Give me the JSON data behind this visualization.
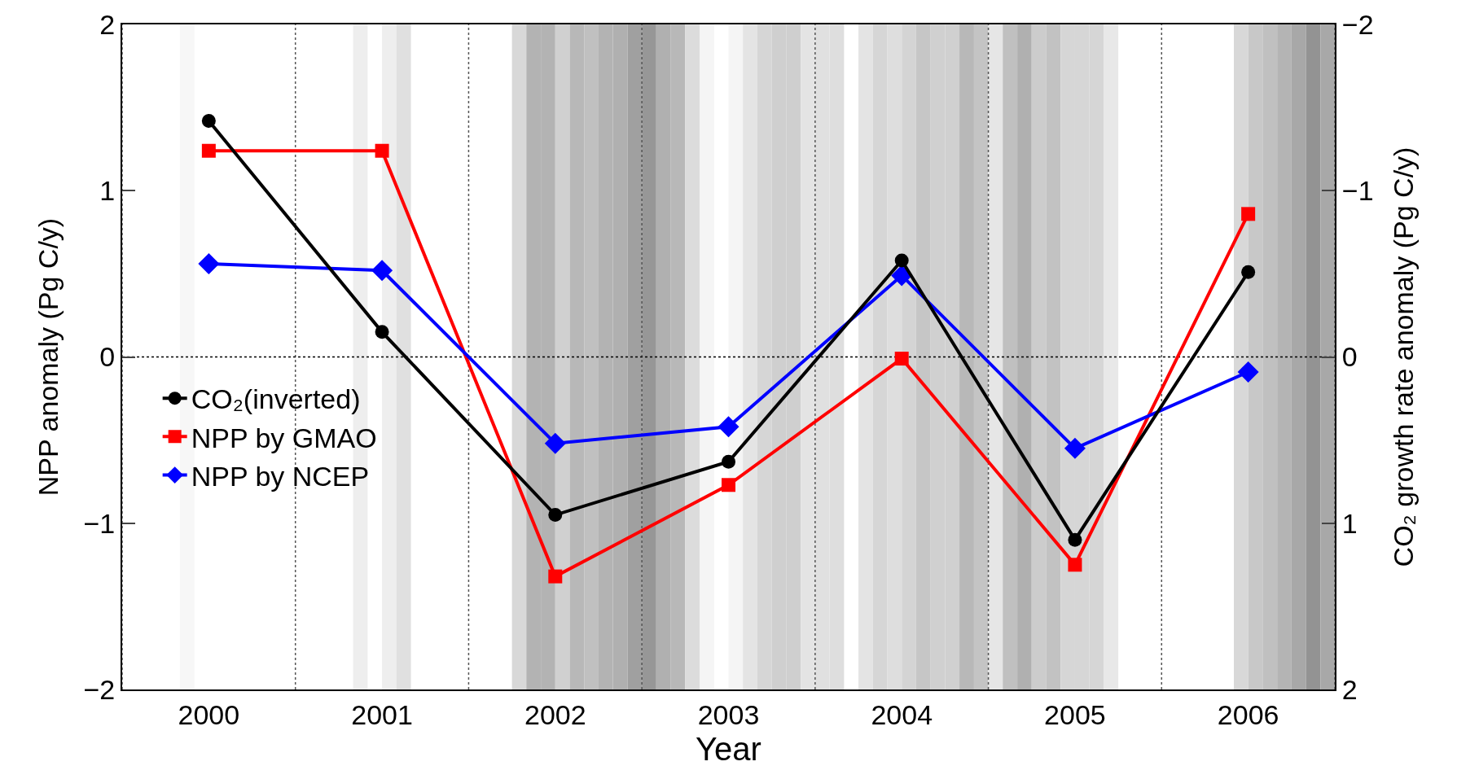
{
  "chart_data": {
    "type": "line",
    "xlabel": "Year",
    "ylabel": "NPP anomaly (Pg C/y)",
    "y2label": "CO₂ growth rate anomaly (Pg C/y)",
    "x": [
      2000,
      2001,
      2002,
      2003,
      2004,
      2005,
      2006
    ],
    "series": [
      {
        "name": "CO₂(inverted)",
        "color": "#000000",
        "marker": "circle",
        "axis": "y2",
        "values": [
          -1.42,
          -0.15,
          0.95,
          0.63,
          -0.58,
          1.1,
          -0.51
        ]
      },
      {
        "name": "NPP by GMAO",
        "color": "#ff0000",
        "marker": "square",
        "values": [
          1.24,
          1.24,
          -1.32,
          -0.77,
          -0.01,
          -1.25,
          0.86
        ]
      },
      {
        "name": "NPP by NCEP",
        "color": "#0000ff",
        "marker": "diamond",
        "values": [
          0.56,
          0.52,
          -0.52,
          -0.42,
          0.49,
          -0.55,
          -0.09
        ]
      }
    ],
    "xlim": [
      1999.5,
      2006.5
    ],
    "xticks": [
      {
        "value": 1999.5,
        "label": null
      },
      2000,
      {
        "value": 2000.5,
        "label": null
      },
      2001,
      {
        "value": 2001.5,
        "label": null
      },
      2002,
      {
        "value": 2002.5,
        "label": null
      },
      2003,
      {
        "value": 2003.5,
        "label": null
      },
      2004,
      {
        "value": 2004.5,
        "label": null
      },
      2005,
      {
        "value": 2005.5,
        "label": null
      },
      2006,
      {
        "value": 2006.5,
        "label": null
      }
    ],
    "ylim": [
      -2,
      2
    ],
    "yticks": [
      {
        "value": -2,
        "label": "−2"
      },
      {
        "value": -1,
        "label": "−1"
      },
      0,
      1,
      2
    ],
    "y2lim": [
      2,
      -2
    ],
    "y2ticks": [
      2,
      1,
      0,
      {
        "value": -1,
        "label": "−1"
      },
      {
        "value": -2,
        "label": "−2"
      }
    ],
    "grid": "x",
    "legend": "left",
    "line_style": "solid",
    "ref_lines": [
      {
        "axis": "y",
        "value": 0,
        "line_style": "dotted",
        "color": "#000000"
      }
    ],
    "bands": [
      {
        "axis": "x",
        "from": 1999.833,
        "to": 1999.917,
        "color": "#f7f7f7"
      },
      {
        "axis": "x",
        "from": 2000.833,
        "to": 2000.917,
        "color": "#eeeeee"
      },
      {
        "axis": "x",
        "from": 2001.0,
        "to": 2001.083,
        "color": "#eeeeee"
      },
      {
        "axis": "x",
        "from": 2001.083,
        "to": 2001.167,
        "color": "#e0e0e0"
      },
      {
        "axis": "x",
        "from": 2001.75,
        "to": 2001.833,
        "color": "#d8d8d8"
      },
      {
        "axis": "x",
        "from": 2001.833,
        "to": 2001.917,
        "color": "#b3b3b3"
      },
      {
        "axis": "x",
        "from": 2001.917,
        "to": 2002.0,
        "color": "#b3b3b3"
      },
      {
        "axis": "x",
        "from": 2002.0,
        "to": 2002.083,
        "color": "#d0d0d0"
      },
      {
        "axis": "x",
        "from": 2002.083,
        "to": 2002.167,
        "color": "#b8b8b8"
      },
      {
        "axis": "x",
        "from": 2002.167,
        "to": 2002.25,
        "color": "#c0c0c0"
      },
      {
        "axis": "x",
        "from": 2002.25,
        "to": 2002.333,
        "color": "#b3b3b3"
      },
      {
        "axis": "x",
        "from": 2002.333,
        "to": 2002.417,
        "color": "#b0b0b0"
      },
      {
        "axis": "x",
        "from": 2002.417,
        "to": 2002.5,
        "color": "#a0a0a0"
      },
      {
        "axis": "x",
        "from": 2002.5,
        "to": 2002.583,
        "color": "#979797"
      },
      {
        "axis": "x",
        "from": 2002.583,
        "to": 2002.667,
        "color": "#b0b0b0"
      },
      {
        "axis": "x",
        "from": 2002.667,
        "to": 2002.75,
        "color": "#b8b8b8"
      },
      {
        "axis": "x",
        "from": 2002.75,
        "to": 2002.833,
        "color": "#dcdcdc"
      },
      {
        "axis": "x",
        "from": 2002.833,
        "to": 2002.917,
        "color": "#f5f5f5"
      },
      {
        "axis": "x",
        "from": 2003.0,
        "to": 2003.083,
        "color": "#f5f5f5"
      },
      {
        "axis": "x",
        "from": 2003.083,
        "to": 2003.167,
        "color": "#e4e4e4"
      },
      {
        "axis": "x",
        "from": 2003.167,
        "to": 2003.25,
        "color": "#d6d6d6"
      },
      {
        "axis": "x",
        "from": 2003.25,
        "to": 2003.333,
        "color": "#cfcfcf"
      },
      {
        "axis": "x",
        "from": 2003.333,
        "to": 2003.417,
        "color": "#cfcfcf"
      },
      {
        "axis": "x",
        "from": 2003.417,
        "to": 2003.5,
        "color": "#e4e4e4"
      },
      {
        "axis": "x",
        "from": 2003.5,
        "to": 2003.583,
        "color": "#e0e0e0"
      },
      {
        "axis": "x",
        "from": 2003.583,
        "to": 2003.667,
        "color": "#dedede"
      },
      {
        "axis": "x",
        "from": 2003.75,
        "to": 2003.833,
        "color": "#e4e4e4"
      },
      {
        "axis": "x",
        "from": 2003.833,
        "to": 2003.917,
        "color": "#d6d6d6"
      },
      {
        "axis": "x",
        "from": 2003.917,
        "to": 2004.0,
        "color": "#dedede"
      },
      {
        "axis": "x",
        "from": 2004.0,
        "to": 2004.083,
        "color": "#d4d4d4"
      },
      {
        "axis": "x",
        "from": 2004.083,
        "to": 2004.167,
        "color": "#c6c6c6"
      },
      {
        "axis": "x",
        "from": 2004.167,
        "to": 2004.25,
        "color": "#d0d0d0"
      },
      {
        "axis": "x",
        "from": 2004.25,
        "to": 2004.333,
        "color": "#d0d0d0"
      },
      {
        "axis": "x",
        "from": 2004.333,
        "to": 2004.417,
        "color": "#b8b8b8"
      },
      {
        "axis": "x",
        "from": 2004.417,
        "to": 2004.5,
        "color": "#c4c4c4"
      },
      {
        "axis": "x",
        "from": 2004.5,
        "to": 2004.583,
        "color": "#e6e6e6"
      },
      {
        "axis": "x",
        "from": 2004.583,
        "to": 2004.667,
        "color": "#c0c0c0"
      },
      {
        "axis": "x",
        "from": 2004.667,
        "to": 2004.75,
        "color": "#b0b0b0"
      },
      {
        "axis": "x",
        "from": 2004.75,
        "to": 2004.833,
        "color": "#cccccc"
      },
      {
        "axis": "x",
        "from": 2004.833,
        "to": 2004.917,
        "color": "#c2c2c2"
      },
      {
        "axis": "x",
        "from": 2004.917,
        "to": 2005.0,
        "color": "#d6d6d6"
      },
      {
        "axis": "x",
        "from": 2005.0,
        "to": 2005.083,
        "color": "#d6d6d6"
      },
      {
        "axis": "x",
        "from": 2005.083,
        "to": 2005.167,
        "color": "#d6d6d6"
      },
      {
        "axis": "x",
        "from": 2005.167,
        "to": 2005.25,
        "color": "#e8e8e8"
      },
      {
        "axis": "x",
        "from": 2005.917,
        "to": 2006.0,
        "color": "#d8d8d8"
      },
      {
        "axis": "x",
        "from": 2006.0,
        "to": 2006.083,
        "color": "#c8c8c8"
      },
      {
        "axis": "x",
        "from": 2006.083,
        "to": 2006.167,
        "color": "#c0c0c0"
      },
      {
        "axis": "x",
        "from": 2006.167,
        "to": 2006.25,
        "color": "#b4b4b4"
      },
      {
        "axis": "x",
        "from": 2006.25,
        "to": 2006.333,
        "color": "#a8a8a8"
      },
      {
        "axis": "x",
        "from": 2006.333,
        "to": 2006.417,
        "color": "#939393"
      },
      {
        "axis": "x",
        "from": 2006.417,
        "to": 2006.5,
        "color": "#a8a8a8"
      }
    ]
  }
}
